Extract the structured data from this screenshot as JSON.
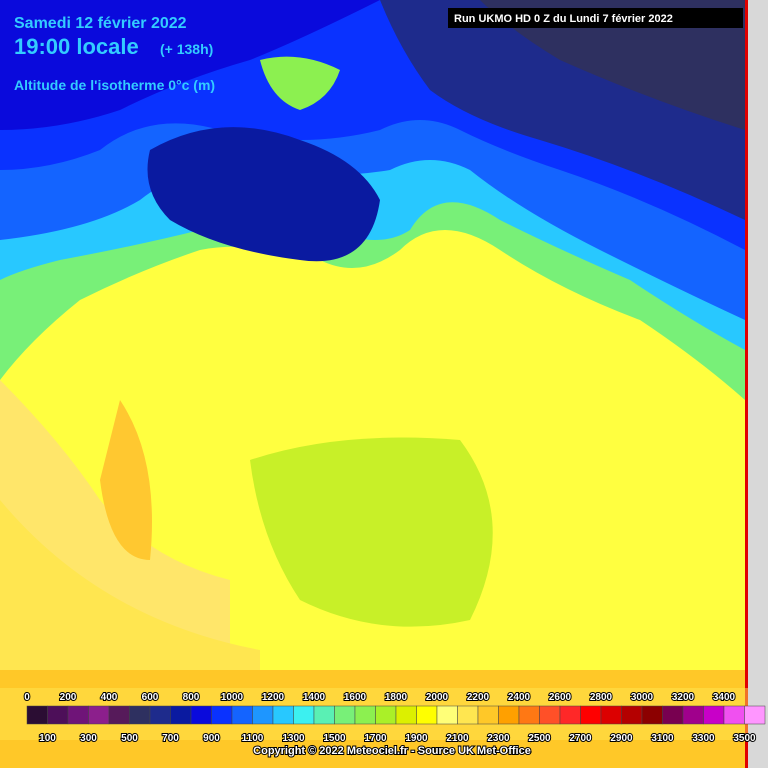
{
  "header": {
    "date": "Samedi 12 février 2022",
    "time": "19:00 locale",
    "lead": "(+ 138h)",
    "parameter": "Altitude de l'isotherme 0°c (m)",
    "run": "Run UKMO HD 0 Z du Lundi 7 février 2022"
  },
  "legend": {
    "labels": [
      0,
      100,
      200,
      300,
      400,
      500,
      600,
      700,
      800,
      900,
      1000,
      1100,
      1200,
      1300,
      1400,
      1500,
      1600,
      1700,
      1800,
      1900,
      2000,
      2100,
      2200,
      2300,
      2400,
      2500,
      2600,
      2700,
      2800,
      2900,
      3000,
      3100,
      3200,
      3300,
      3400,
      3500
    ],
    "colors": [
      "#2b0d33",
      "#4d0f59",
      "#6f1478",
      "#8c1f8c",
      "#561a5a",
      "#2e3060",
      "#1e2b8c",
      "#0a1aa0",
      "#0a0adc",
      "#0a32ff",
      "#1464ff",
      "#1e96ff",
      "#28c8ff",
      "#3cf0f0",
      "#5af0b4",
      "#78f078",
      "#8cf050",
      "#aaf028",
      "#dcf000",
      "#ffff00",
      "#ffff78",
      "#ffe650",
      "#ffc828",
      "#ffa000",
      "#ff7814",
      "#ff5028",
      "#ff2828",
      "#ff0000",
      "#dc0000",
      "#b40000",
      "#8c0000",
      "#780050",
      "#a0008c",
      "#c800c8",
      "#f050f0",
      "#ff96ff"
    ]
  },
  "footer": {
    "copyright": "Copyright © 2022 Meteociel.fr - Source UK Met-Office"
  }
}
